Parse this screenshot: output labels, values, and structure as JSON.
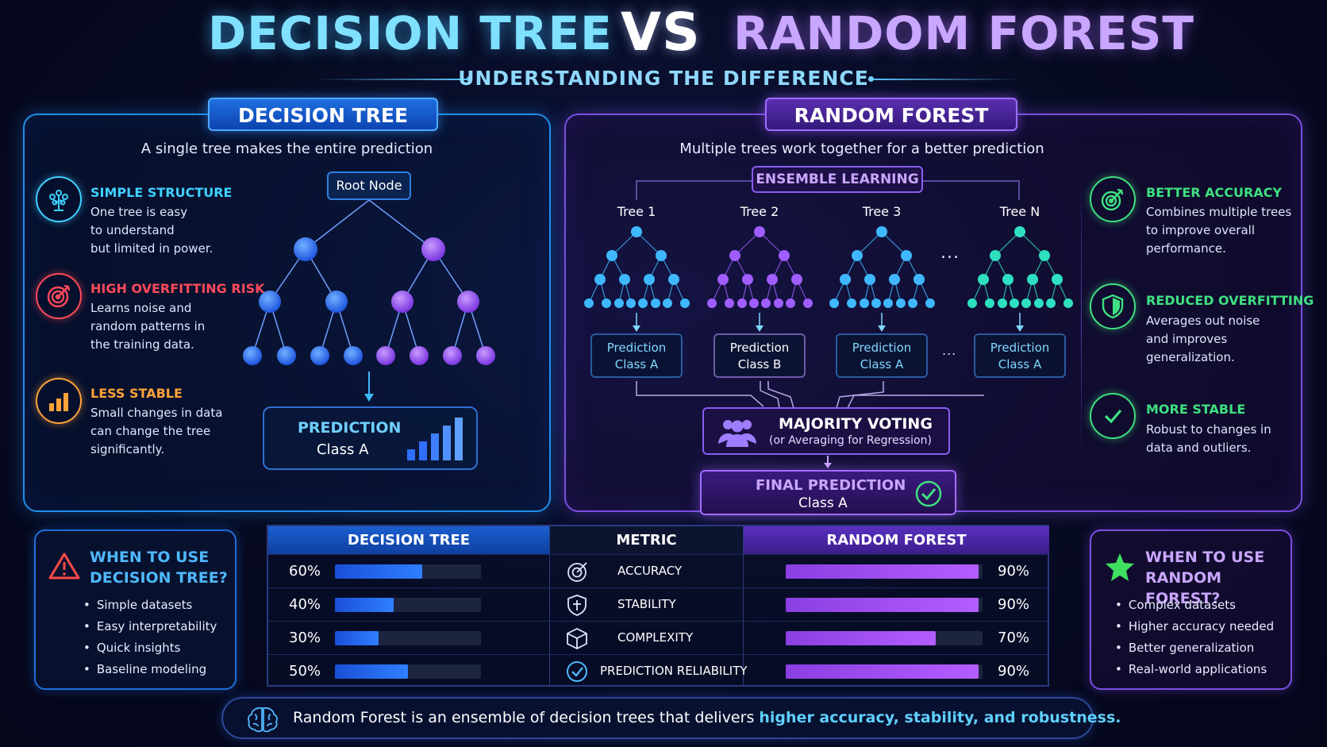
{
  "title": {
    "left": "DECISION TREE",
    "vs": "VS",
    "right": "RANDOM FOREST",
    "subtitle": "UNDERSTANDING THE DIFFERENCE"
  },
  "decision_tree": {
    "tab": "DECISION TREE",
    "description": "A single tree makes the entire prediction",
    "root_node": "Root Node",
    "features": [
      {
        "title": "SIMPLE STRUCTURE",
        "text": "One tree is easy\nto understand\nbut limited in power.",
        "icon": "tree-icon",
        "color": "#3fd0ff"
      },
      {
        "title": "HIGH OVERFITTING RISK",
        "text": "Learns noise and\nrandom patterns in\nthe training data.",
        "icon": "target-icon",
        "color": "#ff4a5a"
      },
      {
        "title": "LESS STABLE",
        "text": "Small changes in data\ncan change the tree\nsignificantly.",
        "icon": "bar-chart-icon",
        "color": "#ffa23a"
      }
    ],
    "prediction": {
      "title": "PREDICTION",
      "class": "Class A"
    }
  },
  "random_forest": {
    "tab": "RANDOM FOREST",
    "description": "Multiple trees work together for a better prediction",
    "ensemble_label": "ENSEMBLE LEARNING",
    "trees": [
      {
        "label": "Tree 1",
        "prediction": "Prediction",
        "class": "Class A",
        "color": "#3fb8ff"
      },
      {
        "label": "Tree 2",
        "prediction": "Prediction",
        "class": "Class B",
        "color": "#a05dff"
      },
      {
        "label": "Tree 3",
        "prediction": "Prediction",
        "class": "Class A",
        "color": "#3fb8ff"
      },
      {
        "label": "Tree N",
        "prediction": "Prediction",
        "class": "Class A",
        "color": "#2fe0c0"
      }
    ],
    "ellipsis": "...",
    "voting": {
      "title": "MAJORITY VOTING",
      "subtitle": "(or Averaging for Regression)"
    },
    "final": {
      "title": "FINAL PREDICTION",
      "class": "Class A"
    },
    "features": [
      {
        "title": "BETTER ACCURACY",
        "text": "Combines multiple trees\nto improve overall\nperformance.",
        "icon": "target-check-icon"
      },
      {
        "title": "REDUCED OVERFITTING",
        "text": "Averages out noise\nand improves\ngeneralization.",
        "icon": "shield-icon"
      },
      {
        "title": "MORE STABLE",
        "text": "Robust to changes in\ndata and outliers.",
        "icon": "check-circle-icon"
      }
    ]
  },
  "when_dt": {
    "title": "WHEN TO USE\nDECISION TREE?",
    "items": [
      "Simple datasets",
      "Easy interpretability",
      "Quick insights",
      "Baseline modeling"
    ]
  },
  "when_rf": {
    "title": "WHEN TO USE\nRANDOM FOREST?",
    "items": [
      "Complex datasets",
      "Higher accuracy needed",
      "Better generalization",
      "Real-world applications"
    ]
  },
  "comparison": {
    "headers": {
      "dt": "DECISION TREE",
      "metric": "METRIC",
      "rf": "RANDOM FOREST"
    },
    "rows": [
      {
        "metric": "ACCURACY",
        "icon": "target-icon",
        "dt_label": "60%",
        "dt": 0.6,
        "rf_label": "90%",
        "rf": 0.9
      },
      {
        "metric": "STABILITY",
        "icon": "shield-icon",
        "dt_label": "40%",
        "dt": 0.4,
        "rf_label": "90%",
        "rf": 0.9
      },
      {
        "metric": "COMPLEXITY",
        "icon": "cube-icon",
        "dt_label": "30%",
        "dt": 0.3,
        "rf_label": "70%",
        "rf": 0.7
      },
      {
        "metric": "PREDICTION RELIABILITY",
        "icon": "check-circle-icon",
        "dt_label": "50%",
        "dt": 0.5,
        "rf_label": "90%",
        "rf": 0.9
      }
    ]
  },
  "footer": {
    "prefix": "Random Forest is an ensemble of decision trees that delivers ",
    "highlight_1": "higher accuracy",
    "sep_1": ", ",
    "highlight_2": "stability",
    "sep_2": ", and ",
    "highlight_3": "robustness",
    "suffix": "."
  }
}
